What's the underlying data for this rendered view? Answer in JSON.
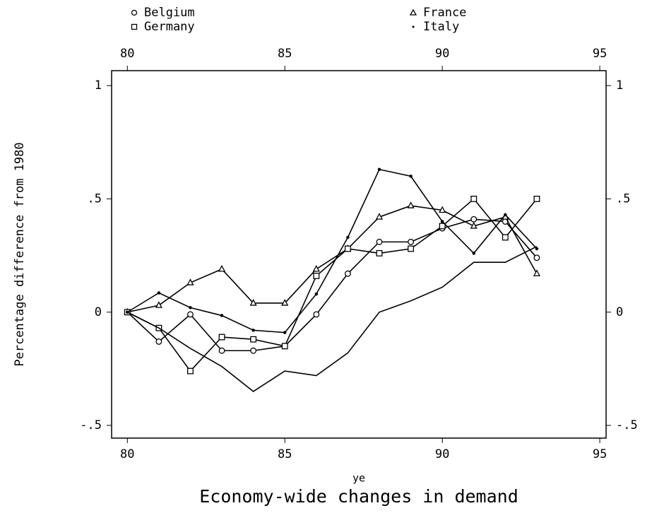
{
  "chart_data": {
    "type": "line",
    "title": "Economy-wide changes in demand",
    "x_label": "ye",
    "y_label": "Percentage difference from 1980",
    "x": [
      80,
      81,
      82,
      83,
      84,
      85,
      86,
      87,
      88,
      89,
      90,
      91,
      92,
      93
    ],
    "series": [
      {
        "name": "Belgium",
        "marker": "circle",
        "color": "#000000",
        "values": [
          0,
          -0.13,
          -0.01,
          -0.17,
          -0.17,
          -0.15,
          -0.01,
          0.17,
          0.31,
          0.31,
          0.37,
          0.41,
          0.4,
          0.24
        ]
      },
      {
        "name": "France",
        "marker": "triangle",
        "color": "#000000",
        "values": [
          0,
          0.03,
          0.13,
          0.19,
          0.04,
          0.04,
          0.19,
          0.28,
          0.42,
          0.47,
          0.45,
          0.38,
          0.42,
          0.17
        ]
      },
      {
        "name": "Germany",
        "marker": "square",
        "color": "#000000",
        "values": [
          0,
          -0.07,
          -0.26,
          -0.11,
          -0.12,
          -0.15,
          0.16,
          0.28,
          0.26,
          0.28,
          0.38,
          0.5,
          0.33,
          0.5
        ]
      },
      {
        "name": "Italy",
        "marker": "dot",
        "color": "#000000",
        "values": [
          0,
          0.085,
          0.02,
          -0.015,
          -0.08,
          -0.09,
          0.08,
          0.33,
          0.63,
          0.6,
          0.4,
          0.26,
          0.43,
          0.28
        ]
      },
      {
        "marker": "none",
        "color": "#000000",
        "values": [
          0,
          -0.07,
          -0.16,
          -0.24,
          -0.35,
          -0.26,
          -0.28,
          -0.18,
          0,
          0.05,
          0.11,
          0.22,
          0.22,
          0.29
        ]
      }
    ],
    "xlim": [
      79.5,
      95.2
    ],
    "xticks": [
      80,
      85,
      90,
      95
    ],
    "ylim": [
      -0.556,
      1.066
    ],
    "yticks": [
      {
        "value": -0.5,
        "label": "-.5"
      },
      0,
      {
        "value": 0.5,
        "label": ".5"
      },
      1
    ],
    "grid": false
  }
}
